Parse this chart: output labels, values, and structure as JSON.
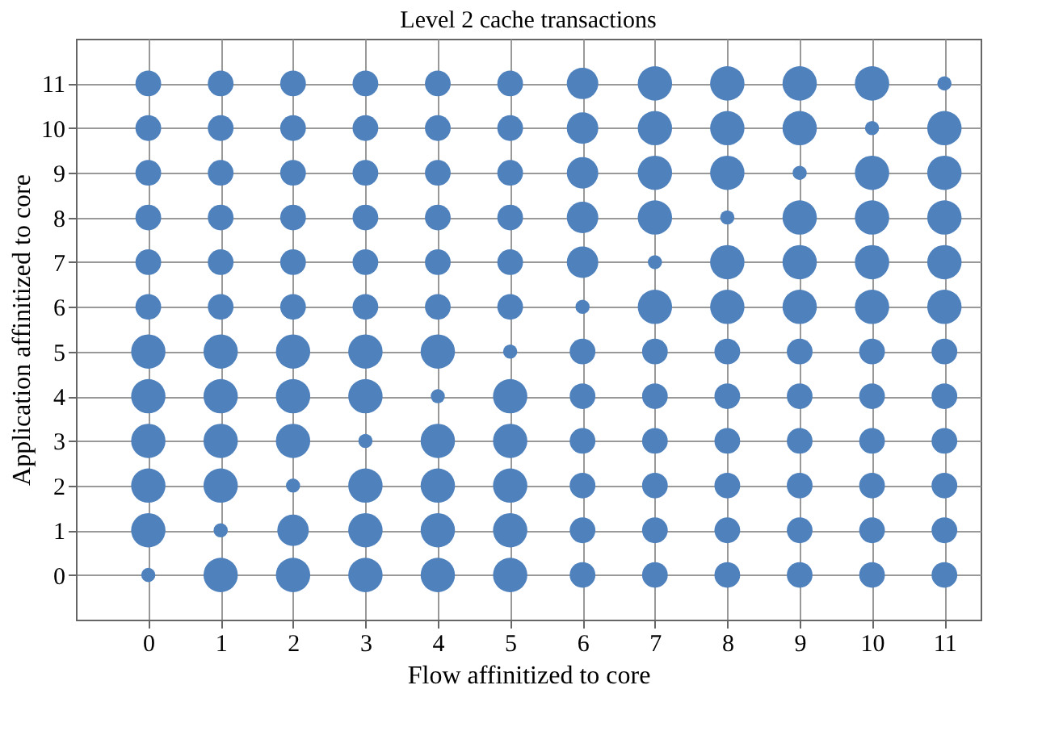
{
  "chart_data": {
    "type": "bubble",
    "title": "Level 2 cache transactions",
    "xlabel": "Flow affinitized to core",
    "ylabel": "Application affinitized to core",
    "xlim": [
      -1,
      11.5
    ],
    "ylim": [
      -1,
      12
    ],
    "xticks": [
      0,
      1,
      2,
      3,
      4,
      5,
      6,
      7,
      8,
      9,
      10,
      11
    ],
    "yticks": [
      0,
      1,
      2,
      3,
      4,
      5,
      6,
      7,
      8,
      9,
      10,
      11
    ],
    "grid": true,
    "legend": false,
    "series": [
      {
        "color": "#4f81bd",
        "x": [
          0,
          1,
          2,
          3,
          4,
          5,
          6,
          7,
          8,
          9,
          10,
          11
        ],
        "values": [
          0,
          0,
          0,
          0,
          0,
          0,
          0,
          0,
          0,
          0,
          0,
          0
        ],
        "sizes": [
          0.17,
          1,
          1,
          1,
          1,
          1,
          0.56,
          0.56,
          0.56,
          0.56,
          0.56,
          0.56
        ]
      },
      {
        "color": "#4f81bd",
        "x": [
          0,
          1,
          2,
          3,
          4,
          5,
          6,
          7,
          8,
          9,
          10,
          11
        ],
        "values": [
          1,
          1,
          1,
          1,
          1,
          1,
          1,
          1,
          1,
          1,
          1,
          1
        ],
        "sizes": [
          1,
          0.17,
          0.84,
          1,
          1,
          1,
          0.56,
          0.56,
          0.56,
          0.56,
          0.56,
          0.56
        ]
      },
      {
        "color": "#4f81bd",
        "x": [
          0,
          1,
          2,
          3,
          4,
          5,
          6,
          7,
          8,
          9,
          10,
          11
        ],
        "values": [
          2,
          2,
          2,
          2,
          2,
          2,
          2,
          2,
          2,
          2,
          2,
          2
        ],
        "sizes": [
          1,
          1,
          0.17,
          1,
          1,
          1,
          0.56,
          0.56,
          0.56,
          0.56,
          0.56,
          0.56
        ]
      },
      {
        "color": "#4f81bd",
        "x": [
          0,
          1,
          2,
          3,
          4,
          5,
          6,
          7,
          8,
          9,
          10,
          11
        ],
        "values": [
          3,
          3,
          3,
          3,
          3,
          3,
          3,
          3,
          3,
          3,
          3,
          3
        ],
        "sizes": [
          1,
          1,
          1,
          0.17,
          1,
          1,
          0.56,
          0.56,
          0.56,
          0.56,
          0.56,
          0.56
        ]
      },
      {
        "color": "#4f81bd",
        "x": [
          0,
          1,
          2,
          3,
          4,
          5,
          6,
          7,
          8,
          9,
          10,
          11
        ],
        "values": [
          4,
          4,
          4,
          4,
          4,
          4,
          4,
          4,
          4,
          4,
          4,
          4
        ],
        "sizes": [
          1,
          1,
          1,
          1,
          0.17,
          1,
          0.56,
          0.56,
          0.56,
          0.56,
          0.56,
          0.56
        ]
      },
      {
        "color": "#4f81bd",
        "x": [
          0,
          1,
          2,
          3,
          4,
          5,
          6,
          7,
          8,
          9,
          10,
          11
        ],
        "values": [
          5,
          5,
          5,
          5,
          5,
          5,
          5,
          5,
          5,
          5,
          5,
          5
        ],
        "sizes": [
          1,
          1,
          1,
          1,
          1,
          0.17,
          0.56,
          0.56,
          0.56,
          0.56,
          0.56,
          0.56
        ]
      },
      {
        "color": "#4f81bd",
        "x": [
          0,
          1,
          2,
          3,
          4,
          5,
          6,
          7,
          8,
          9,
          10,
          11
        ],
        "values": [
          6,
          6,
          6,
          6,
          6,
          6,
          6,
          6,
          6,
          6,
          6,
          6
        ],
        "sizes": [
          0.56,
          0.56,
          0.56,
          0.56,
          0.56,
          0.56,
          0.17,
          1,
          1,
          1,
          1,
          1
        ]
      },
      {
        "color": "#4f81bd",
        "x": [
          0,
          1,
          2,
          3,
          4,
          5,
          6,
          7,
          8,
          9,
          10,
          11
        ],
        "values": [
          7,
          7,
          7,
          7,
          7,
          7,
          7,
          7,
          7,
          7,
          7,
          7
        ],
        "sizes": [
          0.56,
          0.56,
          0.56,
          0.56,
          0.56,
          0.56,
          0.84,
          0.17,
          1,
          1,
          1,
          1
        ]
      },
      {
        "color": "#4f81bd",
        "x": [
          0,
          1,
          2,
          3,
          4,
          5,
          6,
          7,
          8,
          9,
          10,
          11
        ],
        "values": [
          8,
          8,
          8,
          8,
          8,
          8,
          8,
          8,
          8,
          8,
          8,
          8
        ],
        "sizes": [
          0.56,
          0.56,
          0.56,
          0.56,
          0.56,
          0.56,
          0.84,
          1,
          0.17,
          1,
          1,
          1
        ]
      },
      {
        "color": "#4f81bd",
        "x": [
          0,
          1,
          2,
          3,
          4,
          5,
          6,
          7,
          8,
          9,
          10,
          11
        ],
        "values": [
          9,
          9,
          9,
          9,
          9,
          9,
          9,
          9,
          9,
          9,
          9,
          9
        ],
        "sizes": [
          0.56,
          0.56,
          0.56,
          0.56,
          0.56,
          0.56,
          0.84,
          1,
          1,
          0.17,
          1,
          1
        ]
      },
      {
        "color": "#4f81bd",
        "x": [
          0,
          1,
          2,
          3,
          4,
          5,
          6,
          7,
          8,
          9,
          10,
          11
        ],
        "values": [
          10,
          10,
          10,
          10,
          10,
          10,
          10,
          10,
          10,
          10,
          10,
          10
        ],
        "sizes": [
          0.56,
          0.56,
          0.56,
          0.56,
          0.56,
          0.56,
          0.84,
          1,
          1,
          1,
          0.17,
          1
        ]
      },
      {
        "color": "#4f81bd",
        "x": [
          0,
          1,
          2,
          3,
          4,
          5,
          6,
          7,
          8,
          9,
          10,
          11
        ],
        "values": [
          11,
          11,
          11,
          11,
          11,
          11,
          11,
          11,
          11,
          11,
          11,
          11
        ],
        "sizes": [
          0.56,
          0.56,
          0.56,
          0.56,
          0.56,
          0.56,
          0.84,
          1,
          1,
          1,
          1,
          0.17
        ]
      }
    ]
  }
}
